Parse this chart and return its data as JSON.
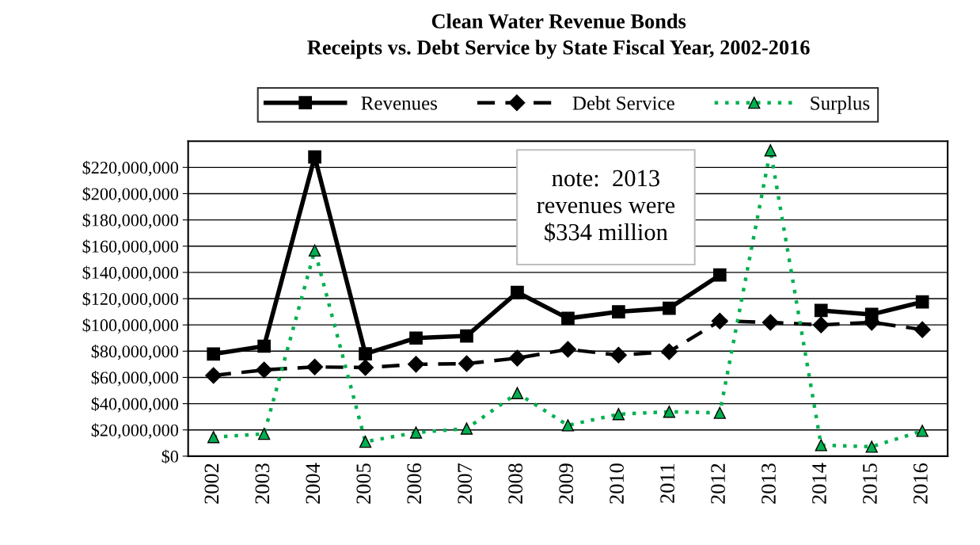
{
  "chart_data": {
    "type": "line",
    "title": "Clean Water Revenue Bonds\nReceipts vs. Debt Service by State Fiscal Year, 2002-2016",
    "categories": [
      "2002",
      "2003",
      "2004",
      "2005",
      "2006",
      "2007",
      "2008",
      "2009",
      "2010",
      "2011",
      "2012",
      "2013",
      "2014",
      "2015",
      "2016"
    ],
    "series": [
      {
        "name": "Revenues",
        "color": "#000000",
        "marker": "square",
        "line_style": "solid",
        "values": [
          77800000,
          83800000,
          228000000,
          78000000,
          90000000,
          91600000,
          124800000,
          105000000,
          110000000,
          112700000,
          138000000,
          null,
          111000000,
          108000000,
          117500000
        ]
      },
      {
        "name": "Debt Service",
        "color": "#000000",
        "marker": "diamond",
        "line_style": "dashed",
        "values": [
          61500000,
          65700000,
          68000000,
          67500000,
          70000000,
          70500000,
          74700000,
          81400000,
          77000000,
          79600000,
          103000000,
          101900000,
          100000000,
          102000000,
          96400000
        ]
      },
      {
        "name": "Surplus",
        "color": "#00b050",
        "marker": "triangle",
        "line_style": "dotted",
        "values": [
          14500000,
          17000000,
          156700000,
          11000000,
          18000000,
          21000000,
          48000000,
          23500000,
          32000000,
          33800000,
          33000000,
          233000000,
          8400000,
          7200000,
          19300000
        ]
      }
    ],
    "ylim": [
      0,
      240000000
    ],
    "yticks": [
      {
        "value": 0,
        "label": "$0"
      },
      {
        "value": 20000000,
        "label": "$20,000,000"
      },
      {
        "value": 40000000,
        "label": "$40,000,000"
      },
      {
        "value": 60000000,
        "label": "$60,000,000"
      },
      {
        "value": 80000000,
        "label": "$80,000,000"
      },
      {
        "value": 100000000,
        "label": "$100,000,000"
      },
      {
        "value": 120000000,
        "label": "$120,000,000"
      },
      {
        "value": 140000000,
        "label": "$140,000,000"
      },
      {
        "value": 160000000,
        "label": "$160,000,000"
      },
      {
        "value": 180000000,
        "label": "$180,000,000"
      },
      {
        "value": 200000000,
        "label": "$200,000,000"
      },
      {
        "value": 220000000,
        "label": "$220,000,000"
      }
    ],
    "grid": "y",
    "legend": "top",
    "annotations": [
      "note:  2013\nrevenues were\n$334 million"
    ]
  }
}
